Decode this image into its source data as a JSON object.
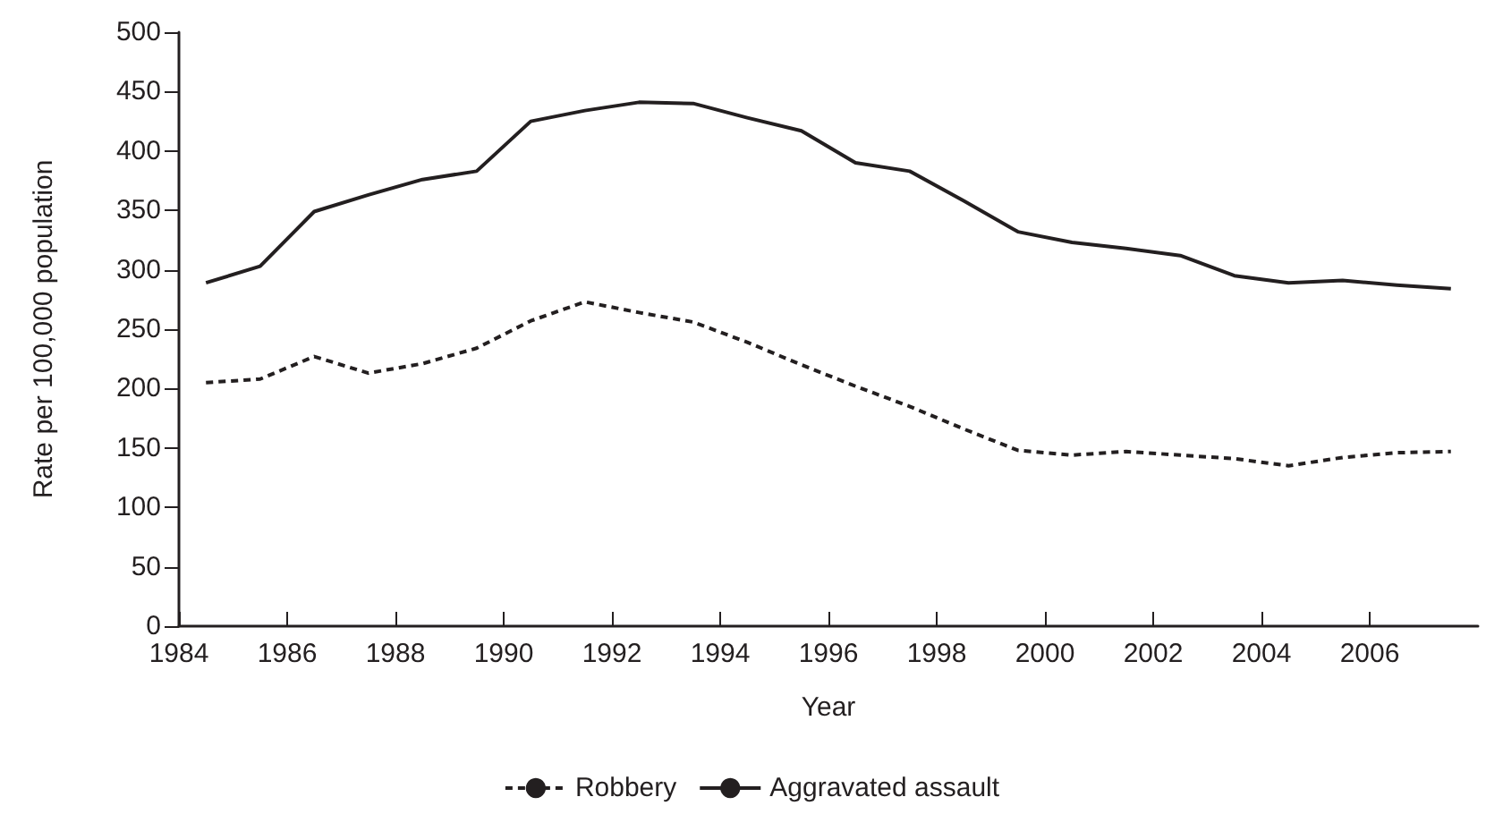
{
  "chart_data": {
    "type": "line",
    "xlabel": "Year",
    "ylabel": "Rate per 100,000 population",
    "x": [
      1984.5,
      1985.5,
      1986.5,
      1987.5,
      1988.5,
      1989.5,
      1990.5,
      1991.5,
      1992.5,
      1993.5,
      1994.5,
      1995.5,
      1996.5,
      1997.5,
      1998.5,
      1999.5,
      2000.5,
      2001.5,
      2002.5,
      2003.5,
      2004.5,
      2005.5,
      2006.5,
      2007.5
    ],
    "series": [
      {
        "name": "Robbery",
        "color": "#231f20",
        "line_style": "dashed",
        "values": [
          205,
          208,
          227,
          213,
          221,
          234,
          257,
          273,
          264,
          256,
          239,
          220,
          202,
          185,
          166,
          148,
          144,
          147,
          144,
          141,
          135,
          142,
          146,
          147
        ]
      },
      {
        "name": "Aggravated assault",
        "color": "#231f20",
        "line_style": "solid",
        "values": [
          289,
          303,
          349,
          363,
          376,
          383,
          425,
          434,
          441,
          440,
          428,
          417,
          390,
          383,
          358,
          332,
          323,
          318,
          312,
          295,
          289,
          291,
          287,
          284
        ]
      }
    ],
    "xlim": [
      1984,
      2008
    ],
    "xticks": [
      1984,
      1986,
      1988,
      1990,
      1992,
      1994,
      1996,
      1998,
      2000,
      2002,
      2004,
      2006
    ],
    "ylim": [
      0,
      500
    ],
    "yticks": [
      0,
      50,
      100,
      150,
      200,
      250,
      300,
      350,
      400,
      450,
      500
    ],
    "grid": false,
    "legend": "bottom",
    "marker": "none"
  }
}
